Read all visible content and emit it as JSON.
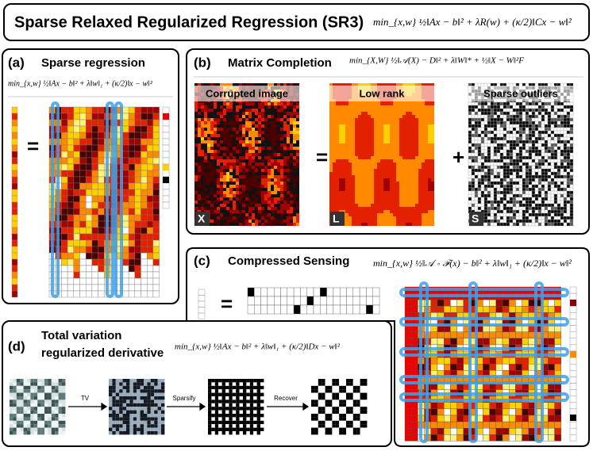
{
  "header": {
    "title": "Sparse Relaxed Regularized Regression (SR3)",
    "equation": "min_{x,w}  ½‖Ax − b‖² + λR(w) + (κ/2)‖Cx − w‖²"
  },
  "panels": [
    {
      "label": "(a)",
      "title": "Sparse regression",
      "equation": "min_{x,w}  ½‖Ax − b‖² + λ‖w‖₁ + (κ/2)‖x − w‖²",
      "operators": [
        "="
      ]
    },
    {
      "label": "(b)",
      "title": "Matrix Completion",
      "equation": "min_{X,W}  ½‖𝒜(X) − D‖² + λ‖W‖* + ½‖X − W‖²F",
      "operators": [
        "=",
        "+"
      ],
      "images": [
        {
          "caption": "Corrupted image",
          "letter": "X"
        },
        {
          "caption": "Low rank",
          "letter": "L"
        },
        {
          "caption": "Sparse outliers",
          "letter": "S"
        }
      ]
    },
    {
      "label": "(c)",
      "title": "Compressed Sensing",
      "equation": "min_{x,w}  ½‖𝒜 ∘ ℱ(x) − b‖² + λ‖w‖₁ + (κ/2)‖x − w‖²",
      "operators": [
        "="
      ]
    },
    {
      "label": "(d)",
      "title_lines": [
        "Total variation",
        "regularized derivative"
      ],
      "equation": "min_{x,w}  ½‖Ax − b‖² + λ‖w‖₁ + (κ/2)‖Dx − w‖²",
      "steps": [
        "TV",
        "Sparsify",
        "Recover"
      ]
    }
  ]
}
